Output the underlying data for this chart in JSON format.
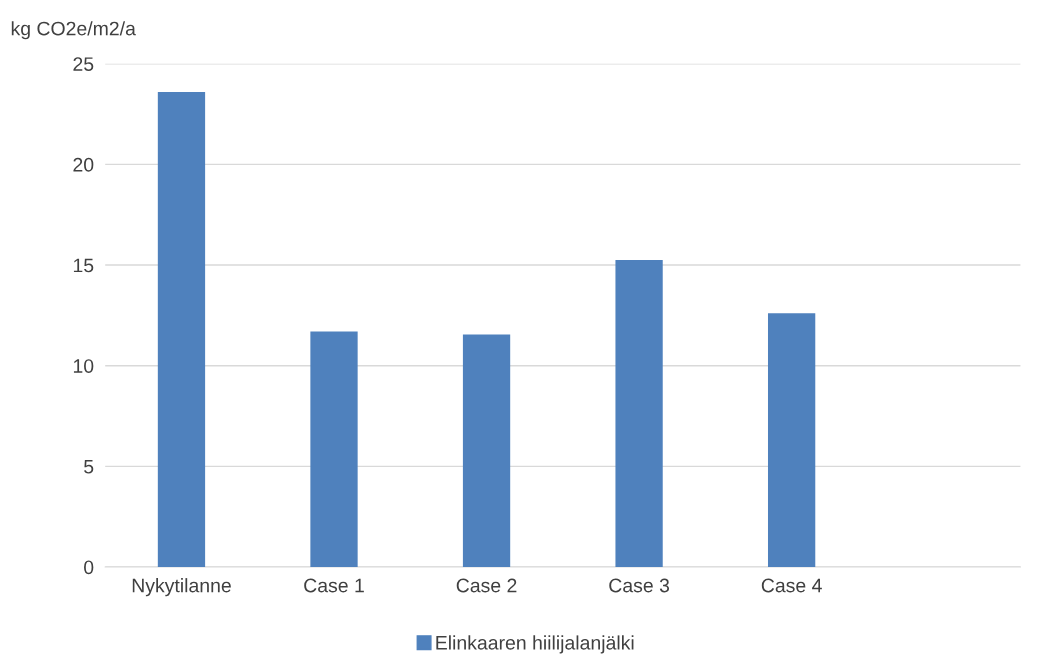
{
  "chart_data": {
    "type": "bar",
    "ylabel": "kg CO2e/m2/a",
    "categories": [
      "Nykytilanne",
      "Case 1",
      "Case 2",
      "Case 3",
      "Case 4",
      null
    ],
    "series": [
      {
        "name": "Elinkaaren hiilijalanjälki",
        "color": "#4f81bd",
        "values": [
          23.6,
          11.7,
          11.55,
          15.25,
          12.6,
          null
        ]
      }
    ],
    "ylim": [
      0,
      25
    ],
    "yticks": [
      0,
      5,
      10,
      15,
      20,
      25
    ],
    "grid": "y",
    "legend": "bottom"
  }
}
